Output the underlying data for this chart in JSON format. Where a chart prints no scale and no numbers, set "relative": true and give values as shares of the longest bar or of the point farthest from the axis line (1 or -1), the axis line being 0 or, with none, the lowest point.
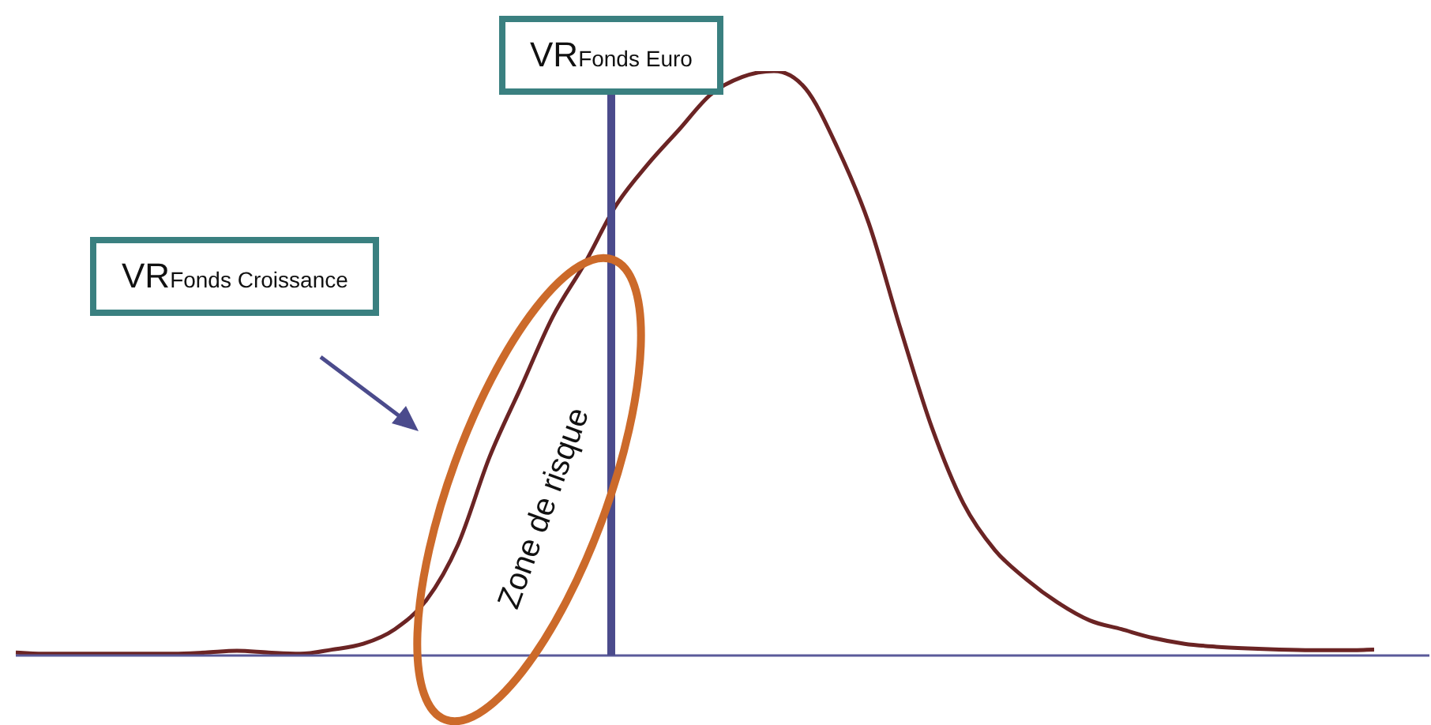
{
  "chart_data": {
    "type": "line",
    "relative": true,
    "legend": false,
    "marker": "none",
    "line_style": "solid",
    "categories": [
      null,
      null,
      null,
      null,
      null,
      null,
      null,
      null,
      null,
      null,
      null,
      null,
      null,
      null,
      null,
      null,
      null,
      null,
      null,
      null,
      null,
      null,
      null,
      null,
      null,
      null,
      null,
      null,
      null,
      null,
      null,
      null,
      null,
      null,
      null,
      null,
      null,
      null,
      null,
      null,
      null,
      null,
      null,
      null
    ],
    "series": [
      {
        "color": "#6b2424",
        "values": [
          0.005,
          0.003,
          0.003,
          0.003,
          0.003,
          0.003,
          0.005,
          0.008,
          0.005,
          0.003,
          0.01,
          0.02,
          0.045,
          0.095,
          0.19,
          0.34,
          0.46,
          0.58,
          0.67,
          0.77,
          0.84,
          0.9,
          0.96,
          0.99,
          1,
          0.97,
          0.87,
          0.74,
          0.56,
          0.39,
          0.26,
          0.18,
          0.13,
          0.09,
          0.06,
          0.045,
          0.03,
          0.02,
          0.015,
          0.012,
          0.01,
          0.009,
          0.009,
          0.01
        ]
      }
    ],
    "annotations": [
      "VR$_{Fonds Croissance}$",
      "Zone de risque",
      "VR$_{Fonds Euro}$"
    ]
  }
}
